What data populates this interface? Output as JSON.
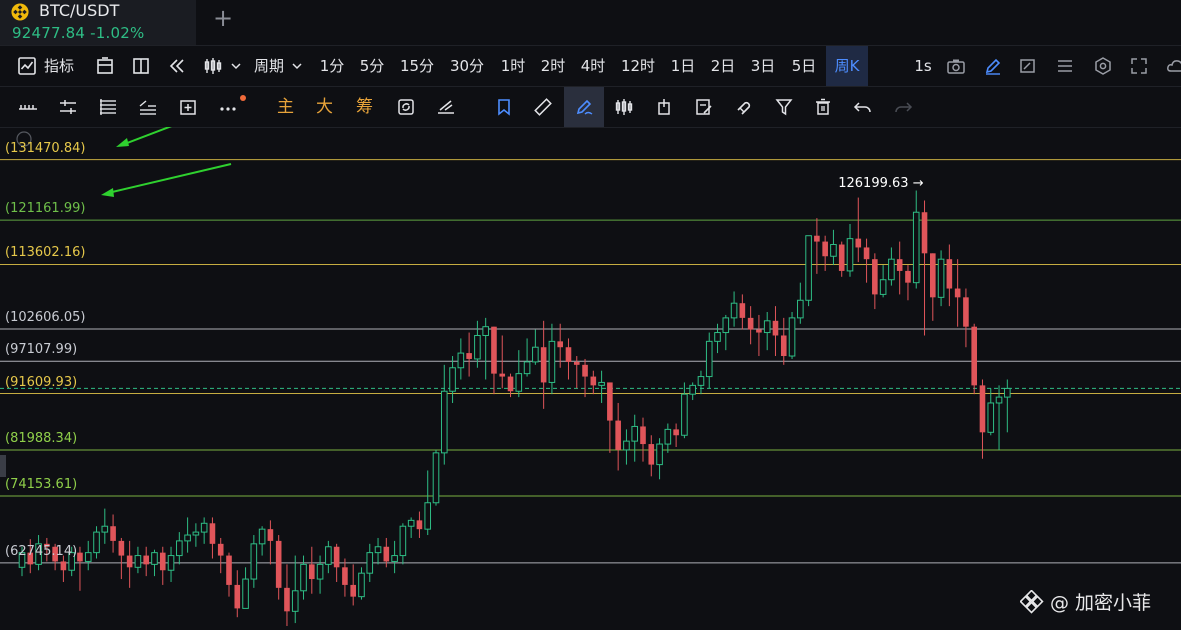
{
  "tab": {
    "symbol": "BTC/USDT",
    "price": "92477.84",
    "change": "-1.02%",
    "add_label": "+"
  },
  "toolbar": {
    "indicators_label": "指标",
    "period_label": "周期",
    "intervals": [
      "1分",
      "5分",
      "15分",
      "30分",
      "1时",
      "2时",
      "4时",
      "12时",
      "1日",
      "2日",
      "3日",
      "5日",
      "周K"
    ],
    "active_interval": "周K",
    "seconds_label": "1s"
  },
  "draw_toolbar": {
    "main_label": "主",
    "large_label": "大",
    "chip_label": "筹"
  },
  "chart_data": {
    "type": "candlestick",
    "y_range": [
      52000,
      136000
    ],
    "high_label": "126199.63",
    "levels": [
      {
        "label": "(131470.84)",
        "value": 131470.84,
        "color": "#e6c84a"
      },
      {
        "label": "(121161.99)",
        "value": 121161.99,
        "color": "#6fbf4a"
      },
      {
        "label": "(113602.16)",
        "value": 113602.16,
        "color": "#e6c84a"
      },
      {
        "label": "(102606.05)",
        "value": 102606.05,
        "color": "#c9ccd3"
      },
      {
        "label": "(97107.99)",
        "value": 97107.99,
        "color": "#c9ccd3"
      },
      {
        "label": "(91609.93)",
        "value": 91609.93,
        "color": "#e6c84a"
      },
      {
        "label": "(81988.34)",
        "value": 81988.34,
        "color": "#8fcf4a"
      },
      {
        "label": "(74153.61)",
        "value": 74153.61,
        "color": "#8fcf4a"
      },
      {
        "label": "(62745.14)",
        "value": 62745.14,
        "color": "#c9ccd3"
      }
    ],
    "current_price": 92477.84,
    "colors": {
      "up": "#2ebd85",
      "down": "#e0555a",
      "level_default": "#c9ccd3"
    },
    "candles": [
      [
        62000,
        64500,
        60500,
        65500
      ],
      [
        64500,
        62500,
        61000,
        66800
      ],
      [
        62500,
        66000,
        61500,
        67500
      ],
      [
        66000,
        65500,
        63000,
        67000
      ],
      [
        65500,
        63000,
        61500,
        66000
      ],
      [
        63000,
        61500,
        59500,
        64000
      ],
      [
        61500,
        64500,
        60500,
        65500
      ],
      [
        64500,
        63000,
        58000,
        65500
      ],
      [
        63000,
        64500,
        61500,
        66500
      ],
      [
        64500,
        68000,
        63500,
        69000
      ],
      [
        68000,
        69000,
        66000,
        72000
      ],
      [
        69000,
        66500,
        64500,
        71000
      ],
      [
        66500,
        64000,
        60000,
        67000
      ],
      [
        64000,
        62000,
        58500,
        66500
      ],
      [
        62000,
        64000,
        61000,
        65500
      ],
      [
        64000,
        62500,
        60500,
        65500
      ],
      [
        62500,
        64500,
        60500,
        65000
      ],
      [
        64500,
        61500,
        59000,
        65500
      ],
      [
        61500,
        64000,
        59500,
        65500
      ],
      [
        64000,
        66500,
        62500,
        68000
      ],
      [
        66500,
        67500,
        64500,
        70500
      ],
      [
        67500,
        68000,
        65500,
        69500
      ],
      [
        68000,
        69500,
        66000,
        70500
      ],
      [
        69500,
        66000,
        63500,
        70500
      ],
      [
        66000,
        64000,
        61000,
        67000
      ],
      [
        64000,
        59000,
        57000,
        64500
      ],
      [
        59000,
        55000,
        53500,
        61500
      ],
      [
        55000,
        60000,
        55000,
        62000
      ],
      [
        60000,
        66000,
        58500,
        67500
      ],
      [
        66000,
        68500,
        64000,
        69000
      ],
      [
        68500,
        66500,
        62500,
        70000
      ],
      [
        66500,
        58500,
        56500,
        67500
      ],
      [
        58500,
        54500,
        51000,
        62500
      ],
      [
        54500,
        58000,
        52500,
        64000
      ],
      [
        58000,
        62500,
        56500,
        64000
      ],
      [
        62500,
        60000,
        57500,
        65500
      ],
      [
        60000,
        62500,
        57500,
        64000
      ],
      [
        62500,
        65500,
        61000,
        66500
      ],
      [
        65500,
        62000,
        59500,
        66000
      ],
      [
        62000,
        59000,
        57000,
        63500
      ],
      [
        59000,
        57000,
        55500,
        62500
      ],
      [
        57000,
        61000,
        56500,
        62000
      ],
      [
        61000,
        64500,
        59500,
        66000
      ],
      [
        64500,
        65500,
        62500,
        67000
      ],
      [
        65500,
        63000,
        62000,
        67000
      ],
      [
        63000,
        64000,
        61000,
        66500
      ],
      [
        64000,
        69000,
        62500,
        69500
      ],
      [
        69000,
        70000,
        67000,
        70500
      ],
      [
        70000,
        68500,
        67000,
        71500
      ],
      [
        68500,
        73000,
        67500,
        78500
      ],
      [
        73000,
        81500,
        72500,
        82000
      ],
      [
        81500,
        92000,
        79500,
        96500
      ],
      [
        92000,
        96000,
        90000,
        98000
      ],
      [
        96000,
        98500,
        94000,
        101000
      ],
      [
        98500,
        97500,
        94500,
        102000
      ],
      [
        97500,
        101500,
        96000,
        104000
      ],
      [
        101500,
        103000,
        94000,
        104500
      ],
      [
        103000,
        95000,
        91500,
        103000
      ],
      [
        95000,
        94500,
        92500,
        101500
      ],
      [
        94500,
        92000,
        91000,
        95000
      ],
      [
        92000,
        95000,
        91000,
        99000
      ],
      [
        95000,
        97000,
        94500,
        101000
      ],
      [
        97000,
        99500,
        96500,
        102500
      ],
      [
        99500,
        93500,
        89000,
        104000
      ],
      [
        93500,
        100500,
        91500,
        103500
      ],
      [
        100500,
        99500,
        96000,
        103500
      ],
      [
        99500,
        97000,
        94000,
        101000
      ],
      [
        97000,
        96500,
        92500,
        98000
      ],
      [
        96500,
        94500,
        91000,
        97500
      ],
      [
        94500,
        93000,
        91500,
        95500
      ],
      [
        93000,
        93500,
        90000,
        95500
      ],
      [
        93500,
        87000,
        81500,
        93500
      ],
      [
        87000,
        82000,
        78500,
        90000
      ],
      [
        82000,
        83500,
        79500,
        85500
      ],
      [
        83500,
        86000,
        80000,
        88000
      ],
      [
        86000,
        83000,
        80000,
        87500
      ],
      [
        83000,
        79500,
        77500,
        84500
      ],
      [
        79500,
        83000,
        77000,
        84000
      ],
      [
        83000,
        85500,
        81500,
        86500
      ],
      [
        85500,
        84500,
        82500,
        86500
      ],
      [
        84500,
        91500,
        84000,
        93500
      ],
      [
        91500,
        93000,
        90500,
        93500
      ],
      [
        93000,
        94500,
        91500,
        95500
      ],
      [
        94500,
        100500,
        92500,
        102000
      ],
      [
        100500,
        102000,
        98500,
        103500
      ],
      [
        102000,
        104500,
        99000,
        105000
      ],
      [
        104500,
        107000,
        103000,
        109000
      ],
      [
        107000,
        104500,
        102500,
        108500
      ],
      [
        104500,
        102500,
        100000,
        106500
      ],
      [
        102500,
        102000,
        98000,
        105000
      ],
      [
        102000,
        104000,
        99000,
        105500
      ],
      [
        104000,
        101500,
        98000,
        106500
      ],
      [
        101500,
        98000,
        96500,
        104500
      ],
      [
        98000,
        104500,
        97500,
        105500
      ],
      [
        104500,
        107500,
        103500,
        110500
      ],
      [
        107500,
        118500,
        106500,
        118500
      ],
      [
        118500,
        117500,
        112000,
        121500
      ],
      [
        117500,
        115000,
        112500,
        118500
      ],
      [
        115000,
        117000,
        113500,
        119500
      ],
      [
        117000,
        112500,
        111500,
        117500
      ],
      [
        112500,
        118000,
        111500,
        120500
      ],
      [
        118000,
        116500,
        114000,
        125000
      ],
      [
        116500,
        114500,
        110500,
        118000
      ],
      [
        114500,
        108500,
        106000,
        115500
      ],
      [
        108500,
        111000,
        108000,
        113500
      ],
      [
        111000,
        114500,
        110000,
        116500
      ],
      [
        114500,
        112500,
        108500,
        117500
      ],
      [
        112500,
        110500,
        107500,
        113500
      ],
      [
        110500,
        122500,
        109500,
        126199.63
      ],
      [
        122500,
        115500,
        101500,
        124500
      ],
      [
        115500,
        108000,
        104000,
        115500
      ],
      [
        108000,
        114500,
        106500,
        116000
      ],
      [
        114500,
        109500,
        106500,
        117000
      ],
      [
        109500,
        108000,
        103000,
        114500
      ],
      [
        108000,
        103000,
        99500,
        109500
      ],
      [
        103000,
        93000,
        91500,
        103500
      ],
      [
        93000,
        85000,
        80500,
        94000
      ],
      [
        85000,
        90000,
        84500,
        92500
      ],
      [
        90000,
        91000,
        82000,
        93000
      ],
      [
        91000,
        92477.84,
        85000,
        94000
      ]
    ]
  },
  "watermark": {
    "text": "@ 加密小菲"
  }
}
